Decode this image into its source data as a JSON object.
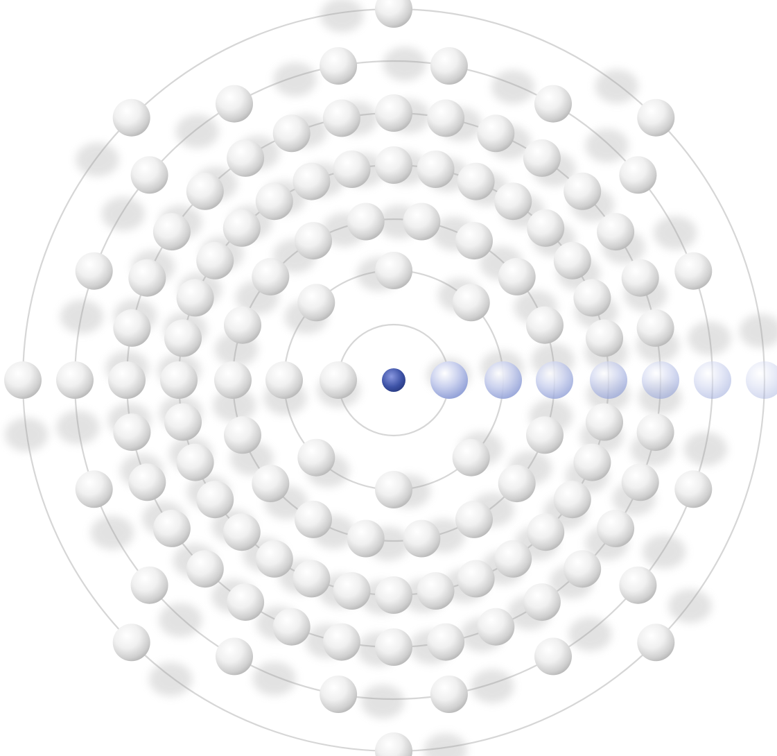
{
  "diagram": {
    "kind": "bohr-model-electron-shells",
    "nucleus": {
      "color": "#3d52a6"
    },
    "electron_color": "#f2f2f2",
    "valence_marker_color": "#8a9ad4",
    "shells": [
      {
        "shell": 1,
        "electrons": 2
      },
      {
        "shell": 2,
        "electrons": 8
      },
      {
        "shell": 3,
        "electrons": 18
      },
      {
        "shell": 4,
        "electrons": 32
      },
      {
        "shell": 5,
        "electrons": 32
      },
      {
        "shell": 6,
        "electrons": 18
      },
      {
        "shell": 7,
        "electrons": 8
      }
    ],
    "total_electrons": 118
  }
}
